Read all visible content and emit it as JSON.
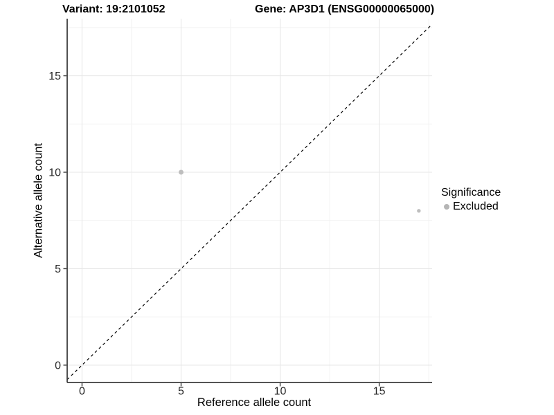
{
  "chart_data": {
    "type": "scatter",
    "title_left": "Variant: 19:2101052",
    "title_right": "Gene: AP3D1 (ENSG00000065000)",
    "xlabel": "Reference allele count",
    "ylabel": "Alternative allele count",
    "xlim": [
      -0.75,
      17.67
    ],
    "ylim": [
      -0.9,
      17.96
    ],
    "x_major_ticks": [
      0,
      5,
      10,
      15
    ],
    "y_major_ticks": [
      0,
      5,
      10,
      15
    ],
    "x_minor_ticks": [
      2.5,
      7.5,
      12.5,
      17.5
    ],
    "y_minor_ticks": [
      2.5,
      7.5,
      12.5,
      17.5
    ],
    "grid": true,
    "reference_line": {
      "type": "identity",
      "slope": 1,
      "intercept": 0,
      "style": "dashed",
      "color": "#000000"
    },
    "series": [
      {
        "name": "Excluded",
        "color": "#bebebe",
        "points": [
          {
            "x": 5,
            "y": 10,
            "r": 3.5
          },
          {
            "x": 17,
            "y": 8,
            "r": 2.7
          }
        ]
      }
    ],
    "legend": {
      "position": "right",
      "title": "Significance",
      "entries": [
        {
          "label": "Excluded",
          "color": "#b5b5b5"
        }
      ]
    },
    "colors": {
      "grid_major": "#e7e7e7",
      "grid_minor": "#f2f2f2",
      "axis_line": "#3c3c3c",
      "tick_mark": "#3c3c3c",
      "tick_label": "#262626",
      "point": "#bebebe",
      "identity_line": "#000000"
    }
  }
}
